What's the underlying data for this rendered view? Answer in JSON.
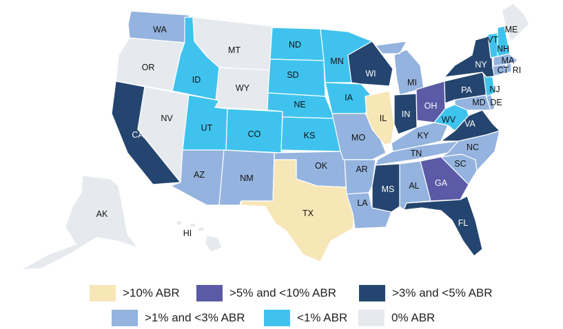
{
  "colors": {
    "gt10": "#f7e6b6",
    "5to10": "#5b5aa6",
    "3to5": "#24456f",
    "1to3": "#94b3de",
    "lt1": "#3fc3ee",
    "zero": "#e6eaee"
  },
  "states": [
    {
      "id": "WA",
      "label": "WA",
      "cat": "1to3"
    },
    {
      "id": "OR",
      "label": "OR",
      "cat": "zero"
    },
    {
      "id": "CA",
      "label": "CA",
      "cat": "3to5"
    },
    {
      "id": "NV",
      "label": "NV",
      "cat": "zero"
    },
    {
      "id": "ID",
      "label": "ID",
      "cat": "lt1"
    },
    {
      "id": "MT",
      "label": "MT",
      "cat": "zero"
    },
    {
      "id": "WY",
      "label": "WY",
      "cat": "zero"
    },
    {
      "id": "UT",
      "label": "UT",
      "cat": "lt1"
    },
    {
      "id": "AZ",
      "label": "AZ",
      "cat": "1to3"
    },
    {
      "id": "CO",
      "label": "CO",
      "cat": "lt1"
    },
    {
      "id": "NM",
      "label": "NM",
      "cat": "1to3"
    },
    {
      "id": "ND",
      "label": "ND",
      "cat": "lt1"
    },
    {
      "id": "SD",
      "label": "SD",
      "cat": "lt1"
    },
    {
      "id": "NE",
      "label": "NE",
      "cat": "lt1"
    },
    {
      "id": "KS",
      "label": "KS",
      "cat": "lt1"
    },
    {
      "id": "OK",
      "label": "OK",
      "cat": "1to3"
    },
    {
      "id": "TX",
      "label": "TX",
      "cat": "gt10"
    },
    {
      "id": "MN",
      "label": "MN",
      "cat": "lt1"
    },
    {
      "id": "IA",
      "label": "IA",
      "cat": "lt1"
    },
    {
      "id": "MO",
      "label": "MO",
      "cat": "1to3"
    },
    {
      "id": "AR",
      "label": "AR",
      "cat": "1to3"
    },
    {
      "id": "LA",
      "label": "LA",
      "cat": "1to3"
    },
    {
      "id": "WI",
      "label": "WI",
      "cat": "3to5"
    },
    {
      "id": "IL",
      "label": "IL",
      "cat": "gt10"
    },
    {
      "id": "MI",
      "label": "MI",
      "cat": "1to3"
    },
    {
      "id": "IN",
      "label": "IN",
      "cat": "3to5"
    },
    {
      "id": "OH",
      "label": "OH",
      "cat": "5to10"
    },
    {
      "id": "KY",
      "label": "KY",
      "cat": "1to3"
    },
    {
      "id": "TN",
      "label": "TN",
      "cat": "1to3"
    },
    {
      "id": "MS",
      "label": "MS",
      "cat": "3to5"
    },
    {
      "id": "AL",
      "label": "AL",
      "cat": "1to3"
    },
    {
      "id": "GA",
      "label": "GA",
      "cat": "5to10"
    },
    {
      "id": "FL",
      "label": "FL",
      "cat": "3to5"
    },
    {
      "id": "SC",
      "label": "SC",
      "cat": "1to3"
    },
    {
      "id": "NC",
      "label": "NC",
      "cat": "1to3"
    },
    {
      "id": "VA",
      "label": "VA",
      "cat": "3to5"
    },
    {
      "id": "WV",
      "label": "WV",
      "cat": "lt1"
    },
    {
      "id": "MD",
      "label": "MD",
      "cat": "1to3"
    },
    {
      "id": "DE",
      "label": "DE",
      "cat": "1to3"
    },
    {
      "id": "PA",
      "label": "PA",
      "cat": "3to5"
    },
    {
      "id": "NJ",
      "label": "NJ",
      "cat": "lt1"
    },
    {
      "id": "NY",
      "label": "NY",
      "cat": "3to5"
    },
    {
      "id": "CT",
      "label": "CT",
      "cat": "1to3"
    },
    {
      "id": "RI",
      "label": "RI",
      "cat": "1to3"
    },
    {
      "id": "MA",
      "label": "MA",
      "cat": "1to3"
    },
    {
      "id": "VT",
      "label": "VT",
      "cat": "lt1"
    },
    {
      "id": "NH",
      "label": "NH",
      "cat": "lt1"
    },
    {
      "id": "ME",
      "label": "ME",
      "cat": "zero"
    },
    {
      "id": "AK",
      "label": "AK",
      "cat": "zero"
    },
    {
      "id": "HI",
      "label": "HI",
      "cat": "zero"
    }
  ],
  "legend": [
    {
      "cat": "gt10",
      "label": ">10% ABR"
    },
    {
      "cat": "5to10",
      "label": ">5% and <10% ABR"
    },
    {
      "cat": "3to5",
      "label": ">3% and <5% ABR"
    },
    {
      "cat": "1to3",
      "label": ">1% and <3% ABR"
    },
    {
      "cat": "lt1",
      "label": "<1% ABR"
    },
    {
      "cat": "zero",
      "label": "0% ABR"
    }
  ]
}
